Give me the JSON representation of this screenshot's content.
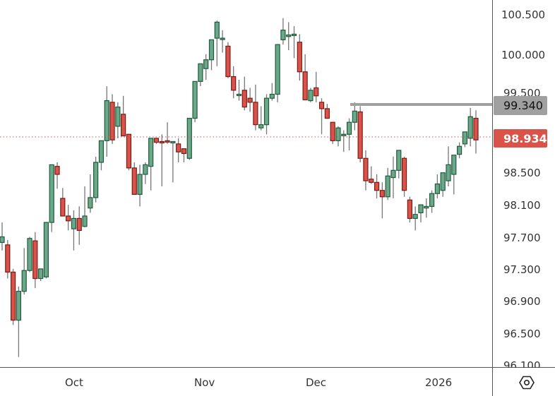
{
  "chart_data": {
    "type": "candlestick",
    "title": "",
    "xlabel": "",
    "ylabel": "",
    "ylim": [
      96.1,
      100.6
    ],
    "grid": false,
    "y_ticks": [
      "100.500",
      "100.000",
      "99.500",
      "98.500",
      "98.100",
      "97.700",
      "97.300",
      "96.900",
      "96.500",
      "96.100"
    ],
    "x_ticks": [
      "Oct",
      "Nov",
      "Dec",
      "2026"
    ],
    "last_price": "98.934",
    "horizontal_level": "99.340",
    "colors": {
      "up_body": "#6aa889",
      "up_border": "#1f5a3c",
      "down_body": "#d9534a",
      "down_border": "#7a1a14",
      "wick": "#777777",
      "level_line": "#a0a0a0",
      "last_price_badge": "#d9534a",
      "level_badge": "#a0a0a0",
      "price_line": "#c05050"
    },
    "candles": [
      {
        "o": 97.65,
        "h": 97.9,
        "l": 97.55,
        "c": 97.72
      },
      {
        "o": 97.62,
        "h": 97.68,
        "l": 97.2,
        "c": 97.28
      },
      {
        "o": 97.28,
        "h": 97.32,
        "l": 96.62,
        "c": 96.68
      },
      {
        "o": 96.68,
        "h": 97.1,
        "l": 96.22,
        "c": 97.04
      },
      {
        "o": 97.04,
        "h": 97.58,
        "l": 97.0,
        "c": 97.3
      },
      {
        "o": 97.3,
        "h": 97.72,
        "l": 97.28,
        "c": 97.7
      },
      {
        "o": 97.67,
        "h": 97.78,
        "l": 97.08,
        "c": 97.2
      },
      {
        "o": 97.2,
        "h": 97.3,
        "l": 97.17,
        "c": 97.32
      },
      {
        "o": 97.22,
        "h": 97.85,
        "l": 97.2,
        "c": 97.9
      },
      {
        "o": 97.9,
        "h": 98.52,
        "l": 97.78,
        "c": 98.62
      },
      {
        "o": 98.6,
        "h": 98.65,
        "l": 98.32,
        "c": 98.5
      },
      {
        "o": 98.2,
        "h": 98.33,
        "l": 98.05,
        "c": 97.98
      },
      {
        "o": 97.98,
        "h": 98.12,
        "l": 97.8,
        "c": 97.92
      },
      {
        "o": 97.82,
        "h": 98.05,
        "l": 97.55,
        "c": 97.95
      },
      {
        "o": 97.95,
        "h": 98.1,
        "l": 97.62,
        "c": 97.8
      },
      {
        "o": 97.85,
        "h": 98.35,
        "l": 97.84,
        "c": 97.98
      },
      {
        "o": 98.08,
        "h": 98.5,
        "l": 98.02,
        "c": 98.21
      },
      {
        "o": 98.21,
        "h": 98.72,
        "l": 98.15,
        "c": 98.65
      },
      {
        "o": 98.65,
        "h": 98.85,
        "l": 98.55,
        "c": 98.92
      },
      {
        "o": 98.92,
        "h": 99.6,
        "l": 98.72,
        "c": 99.42
      },
      {
        "o": 99.4,
        "h": 99.5,
        "l": 98.88,
        "c": 98.93
      },
      {
        "o": 99.1,
        "h": 99.4,
        "l": 98.95,
        "c": 99.34
      },
      {
        "o": 99.25,
        "h": 99.48,
        "l": 99.0,
        "c": 98.98
      },
      {
        "o": 99.0,
        "h": 99.0,
        "l": 98.55,
        "c": 98.58
      },
      {
        "o": 98.58,
        "h": 98.65,
        "l": 98.45,
        "c": 98.25
      },
      {
        "o": 98.25,
        "h": 98.62,
        "l": 98.1,
        "c": 98.5
      },
      {
        "o": 98.5,
        "h": 98.65,
        "l": 98.38,
        "c": 98.62
      },
      {
        "o": 98.6,
        "h": 98.68,
        "l": 98.3,
        "c": 98.95
      },
      {
        "o": 98.95,
        "h": 98.94,
        "l": 98.88,
        "c": 98.9
      },
      {
        "o": 98.91,
        "h": 99.0,
        "l": 98.35,
        "c": 98.9
      },
      {
        "o": 98.92,
        "h": 99.15,
        "l": 98.88,
        "c": 98.91
      },
      {
        "o": 98.91,
        "h": 98.9,
        "l": 98.4,
        "c": 98.91
      },
      {
        "o": 98.88,
        "h": 98.95,
        "l": 98.65,
        "c": 98.78
      },
      {
        "o": 98.82,
        "h": 98.82,
        "l": 98.65,
        "c": 98.76
      },
      {
        "o": 98.7,
        "h": 99.15,
        "l": 98.68,
        "c": 99.2
      },
      {
        "o": 99.2,
        "h": 99.46,
        "l": 99.15,
        "c": 99.66
      },
      {
        "o": 99.66,
        "h": 99.85,
        "l": 99.6,
        "c": 99.88
      },
      {
        "o": 99.82,
        "h": 100.0,
        "l": 99.68,
        "c": 99.93
      },
      {
        "o": 99.93,
        "h": 100.15,
        "l": 99.8,
        "c": 100.18
      },
      {
        "o": 100.2,
        "h": 100.42,
        "l": 99.85,
        "c": 100.4
      },
      {
        "o": 100.2,
        "h": 100.3,
        "l": 100.02,
        "c": 100.2
      },
      {
        "o": 100.1,
        "h": 100.15,
        "l": 99.7,
        "c": 99.72
      },
      {
        "o": 99.72,
        "h": 99.85,
        "l": 99.45,
        "c": 99.55
      },
      {
        "o": 99.5,
        "h": 99.68,
        "l": 99.42,
        "c": 99.5
      },
      {
        "o": 99.55,
        "h": 99.72,
        "l": 99.3,
        "c": 99.34
      },
      {
        "o": 99.45,
        "h": 99.58,
        "l": 99.28,
        "c": 99.4
      },
      {
        "o": 99.4,
        "h": 99.62,
        "l": 99.05,
        "c": 99.12
      },
      {
        "o": 99.08,
        "h": 99.35,
        "l": 99.05,
        "c": 99.12
      },
      {
        "o": 99.12,
        "h": 99.5,
        "l": 99.0,
        "c": 99.45
      },
      {
        "o": 99.45,
        "h": 99.64,
        "l": 99.42,
        "c": 99.5
      },
      {
        "o": 99.5,
        "h": 100.12,
        "l": 99.4,
        "c": 100.12
      },
      {
        "o": 100.18,
        "h": 100.45,
        "l": 100.12,
        "c": 100.3
      },
      {
        "o": 100.22,
        "h": 100.4,
        "l": 100.05,
        "c": 100.24
      },
      {
        "o": 100.25,
        "h": 100.35,
        "l": 99.95,
        "c": 100.25
      },
      {
        "o": 100.15,
        "h": 100.25,
        "l": 99.67,
        "c": 99.78
      },
      {
        "o": 99.78,
        "h": 100.0,
        "l": 99.45,
        "c": 99.43
      },
      {
        "o": 99.42,
        "h": 99.58,
        "l": 99.4,
        "c": 99.55
      },
      {
        "o": 99.58,
        "h": 99.78,
        "l": 99.4,
        "c": 99.48
      },
      {
        "o": 99.4,
        "h": 99.45,
        "l": 99.0,
        "c": 99.32
      },
      {
        "o": 99.32,
        "h": 99.38,
        "l": 99.22,
        "c": 99.2
      },
      {
        "o": 99.15,
        "h": 99.15,
        "l": 98.88,
        "c": 98.92
      },
      {
        "o": 98.92,
        "h": 99.1,
        "l": 98.85,
        "c": 99.08
      },
      {
        "o": 99.0,
        "h": 99.05,
        "l": 98.78,
        "c": 99.0
      },
      {
        "o": 99.0,
        "h": 99.2,
        "l": 98.8,
        "c": 99.15
      },
      {
        "o": 99.15,
        "h": 99.4,
        "l": 99.05,
        "c": 99.29
      },
      {
        "o": 99.28,
        "h": 99.35,
        "l": 98.65,
        "c": 98.7
      },
      {
        "o": 98.7,
        "h": 98.8,
        "l": 98.3,
        "c": 98.42
      },
      {
        "o": 98.44,
        "h": 98.6,
        "l": 98.38,
        "c": 98.4
      },
      {
        "o": 98.4,
        "h": 98.5,
        "l": 98.2,
        "c": 98.3
      },
      {
        "o": 98.3,
        "h": 98.4,
        "l": 97.95,
        "c": 98.22
      },
      {
        "o": 98.22,
        "h": 98.58,
        "l": 98.18,
        "c": 98.48
      },
      {
        "o": 98.46,
        "h": 98.72,
        "l": 98.2,
        "c": 98.55
      },
      {
        "o": 98.55,
        "h": 98.8,
        "l": 98.45,
        "c": 98.8
      },
      {
        "o": 98.7,
        "h": 98.72,
        "l": 98.22,
        "c": 98.3
      },
      {
        "o": 98.18,
        "h": 98.22,
        "l": 97.9,
        "c": 97.95
      },
      {
        "o": 97.95,
        "h": 98.1,
        "l": 97.8,
        "c": 98.0
      },
      {
        "o": 98.02,
        "h": 98.1,
        "l": 97.9,
        "c": 98.12
      },
      {
        "o": 98.08,
        "h": 98.2,
        "l": 97.96,
        "c": 98.1
      },
      {
        "o": 98.1,
        "h": 98.3,
        "l": 98.02,
        "c": 98.26
      },
      {
        "o": 98.26,
        "h": 98.5,
        "l": 98.2,
        "c": 98.38
      },
      {
        "o": 98.3,
        "h": 98.52,
        "l": 98.22,
        "c": 98.52
      },
      {
        "o": 98.42,
        "h": 98.85,
        "l": 98.35,
        "c": 98.62
      },
      {
        "o": 98.5,
        "h": 98.65,
        "l": 98.25,
        "c": 98.74
      },
      {
        "o": 98.75,
        "h": 98.9,
        "l": 98.7,
        "c": 98.85
      },
      {
        "o": 98.88,
        "h": 98.98,
        "l": 98.84,
        "c": 99.03
      },
      {
        "o": 98.95,
        "h": 99.33,
        "l": 98.85,
        "c": 99.22
      },
      {
        "o": 99.2,
        "h": 99.3,
        "l": 98.76,
        "c": 98.93
      }
    ]
  },
  "price_axis": {
    "labels": [
      "100.500",
      "100.000",
      "99.500",
      "98.500",
      "98.100",
      "97.700",
      "97.300",
      "96.900",
      "96.500",
      "96.100"
    ],
    "level_badge": "99.340",
    "last_price_badge": "98.934"
  },
  "time_axis": {
    "labels": [
      "Oct",
      "Nov",
      "Dec",
      "2026"
    ]
  },
  "settings_icon": "gear-hexagon-icon"
}
